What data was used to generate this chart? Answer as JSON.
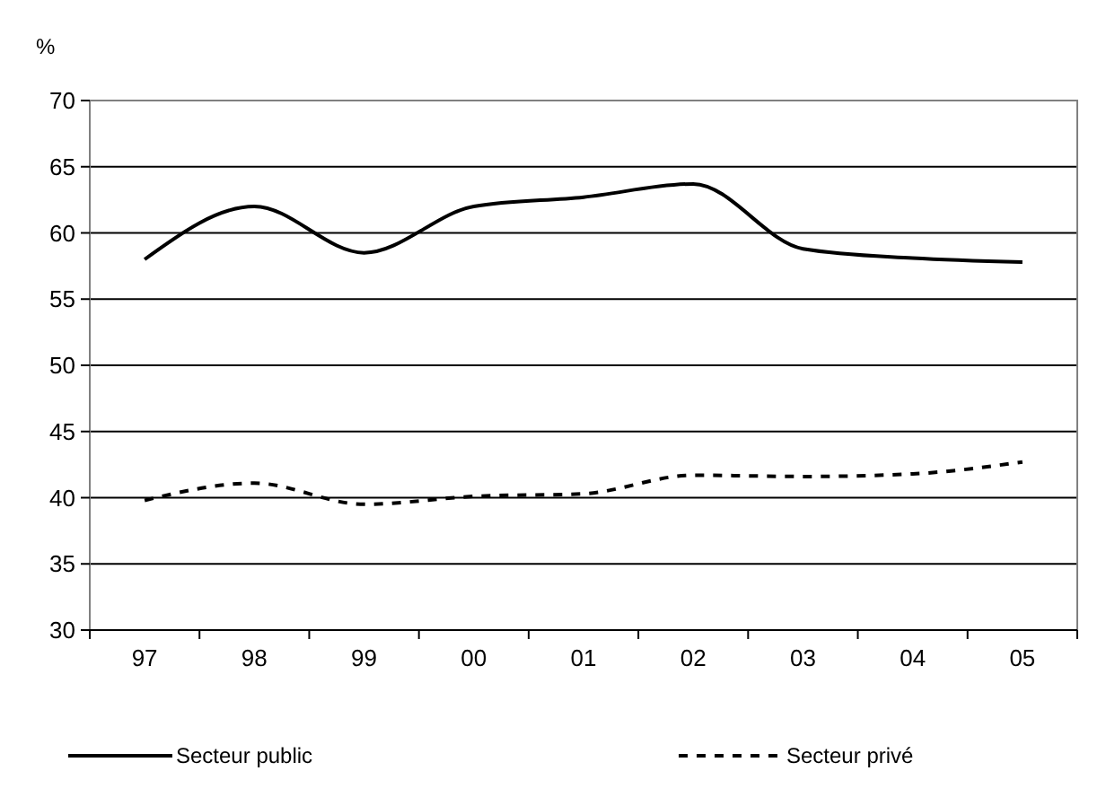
{
  "chart_data": {
    "type": "line",
    "ylabel": "%",
    "categories": [
      "97",
      "98",
      "99",
      "00",
      "01",
      "02",
      "03",
      "04",
      "05"
    ],
    "series": [
      {
        "name": "Secteur public",
        "color": "#000000",
        "line_style": "solid",
        "values": [
          58,
          62,
          58.5,
          62,
          62.7,
          63.7,
          58.8,
          58.1,
          57.8
        ]
      },
      {
        "name": "Secteur privé",
        "color": "#000000",
        "line_style": "dashed",
        "values": [
          39.8,
          41.1,
          39.5,
          40.1,
          40.3,
          41.7,
          41.6,
          41.8,
          42.7
        ]
      }
    ],
    "ylim": [
      30,
      70
    ],
    "yticks": [
      30,
      35,
      40,
      45,
      50,
      55,
      60,
      65,
      70
    ],
    "grid": "y",
    "legend": "bottom",
    "marker": "none"
  }
}
